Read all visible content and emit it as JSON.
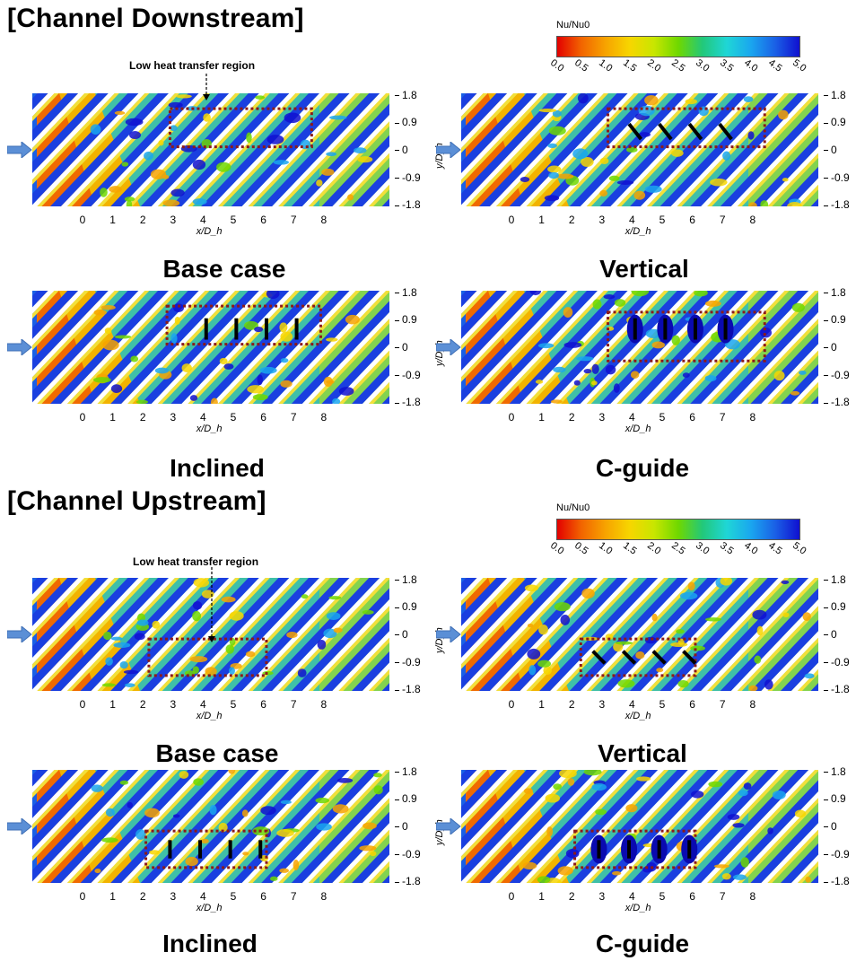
{
  "sections": [
    {
      "title": "[Channel Downstream]",
      "colorbar": {
        "title": "Nu/Nu0",
        "ticks": [
          "0.0",
          "0.5",
          "1.0",
          "1.5",
          "2.0",
          "2.5",
          "3.0",
          "3.5",
          "4.0",
          "4.5",
          "5.0"
        ]
      },
      "annotation": "Low heat transfer region",
      "panels": [
        {
          "label": "Base case",
          "box": "upper",
          "guides": "none"
        },
        {
          "label": "Vertical",
          "box": "upper",
          "guides": "vertical-slanted"
        },
        {
          "label": "Inclined",
          "box": "upper",
          "guides": "inclined"
        },
        {
          "label": "C-guide",
          "box": "upper",
          "guides": "c-guide"
        }
      ]
    },
    {
      "title": "[Channel Upstream]",
      "colorbar": {
        "title": "Nu/Nu0",
        "ticks": [
          "0.0",
          "0.5",
          "1.0",
          "1.5",
          "2.0",
          "2.5",
          "3.0",
          "3.5",
          "4.0",
          "4.5",
          "5.0"
        ]
      },
      "annotation": "Low heat transfer region",
      "panels": [
        {
          "label": "Base case",
          "box": "lower",
          "guides": "none"
        },
        {
          "label": "Vertical",
          "box": "lower",
          "guides": "vertical-slanted"
        },
        {
          "label": "Inclined",
          "box": "lower",
          "guides": "inclined"
        },
        {
          "label": "C-guide",
          "box": "lower",
          "guides": "c-guide"
        }
      ]
    }
  ],
  "axes": {
    "xticks": [
      "0",
      "1",
      "2",
      "3",
      "4",
      "5",
      "6",
      "7",
      "8"
    ],
    "yticks": [
      "1.8",
      "0.9",
      "0",
      "-0.9",
      "-1.8"
    ],
    "xlabel": "x/D_h",
    "ylabel": "y/D_h"
  },
  "colors": {
    "colormap": [
      "#e30000",
      "#f26500",
      "#f7a300",
      "#f7d600",
      "#c8e600",
      "#6fd800",
      "#22c87a",
      "#1fd6d6",
      "#1aa6ef",
      "#1a60e6",
      "#1010d0"
    ],
    "box": "#8b1a1a",
    "inlet_arrow": "#5b8fd6"
  }
}
